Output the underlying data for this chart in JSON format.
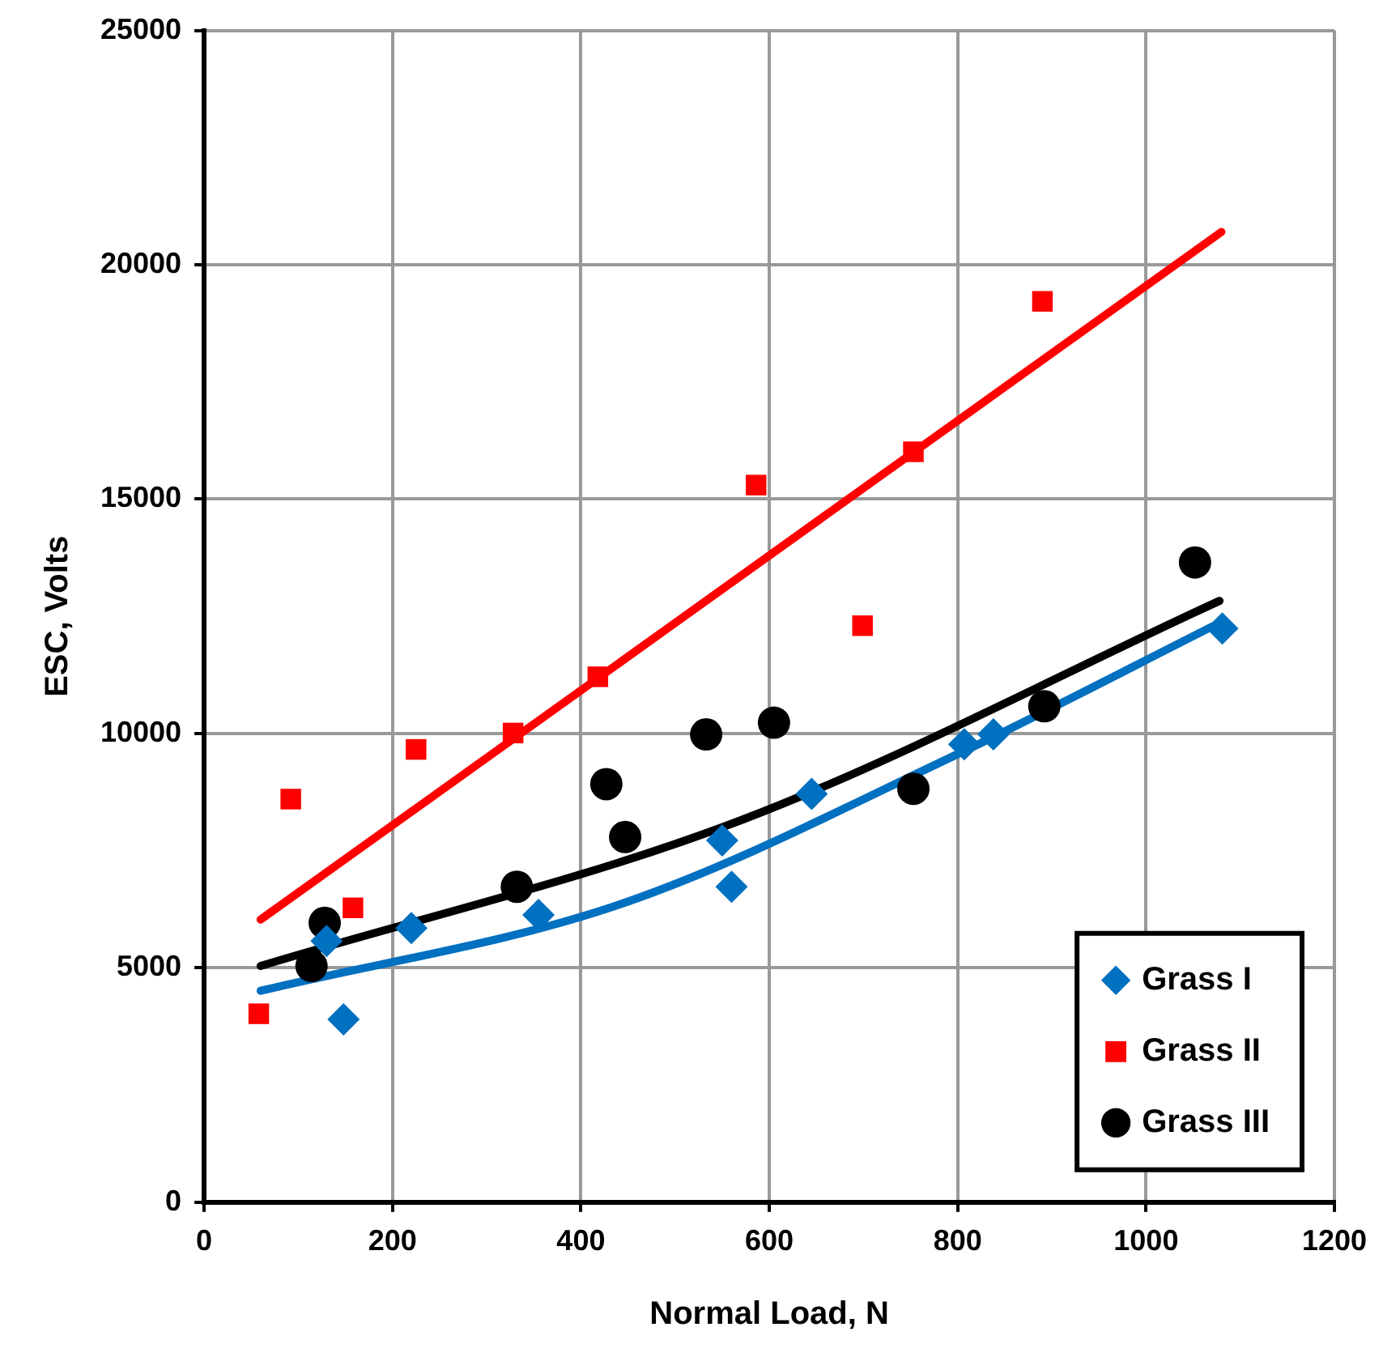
{
  "chart_data": {
    "type": "scatter",
    "xlabel": "Normal Load, N",
    "ylabel": "ESC, Volts",
    "xlim": [
      0,
      1200
    ],
    "xticks": [
      0,
      200,
      400,
      600,
      800,
      1000,
      1200
    ],
    "ylim": [
      0,
      25000
    ],
    "yticks": [
      0,
      5000,
      10000,
      15000,
      20000,
      25000
    ],
    "grid": true,
    "legend": "bottom right",
    "series": [
      {
        "name": "Grass I",
        "type": "scatter",
        "marker": "diamond",
        "color": "#0070c0",
        "x": [
          148,
          130,
          220,
          355,
          550,
          560,
          645,
          807,
          838,
          1081
        ],
        "values": [
          3900,
          5570,
          5850,
          6130,
          7720,
          6730,
          8710,
          9770,
          9980,
          12240
        ]
      },
      {
        "name": "Grass II",
        "type": "scatter",
        "marker": "square",
        "color": "#ff0000",
        "x": [
          58,
          92,
          158,
          225,
          328,
          418,
          586,
          699,
          753,
          890
        ],
        "values": [
          4020,
          8600,
          6280,
          9660,
          10010,
          11210,
          15300,
          12300,
          16010,
          19220
        ]
      },
      {
        "name": "Grass III",
        "type": "scatter",
        "marker": "circle",
        "color": "#000000",
        "x": [
          114,
          128,
          332,
          427,
          447,
          533,
          605,
          753,
          892,
          1052
        ],
        "values": [
          5040,
          5960,
          6730,
          8920,
          7790,
          9980,
          10230,
          8820,
          10580,
          13650
        ]
      },
      {
        "type": "line",
        "marker": "none",
        "line_style": "solid",
        "color": "#0070c0",
        "x": [
          60,
          445,
          800,
          1080
        ],
        "values": [
          4510,
          6380,
          9560,
          12380
        ]
      },
      {
        "type": "line",
        "marker": "none",
        "line_style": "solid",
        "color": "#ff0000",
        "x": [
          60,
          1080
        ],
        "values": [
          6030,
          20700
        ]
      },
      {
        "type": "line",
        "marker": "none",
        "line_style": "solid",
        "color": "#000000",
        "x": [
          60,
          570,
          1078
        ],
        "values": [
          5040,
          8150,
          12830
        ]
      }
    ]
  }
}
